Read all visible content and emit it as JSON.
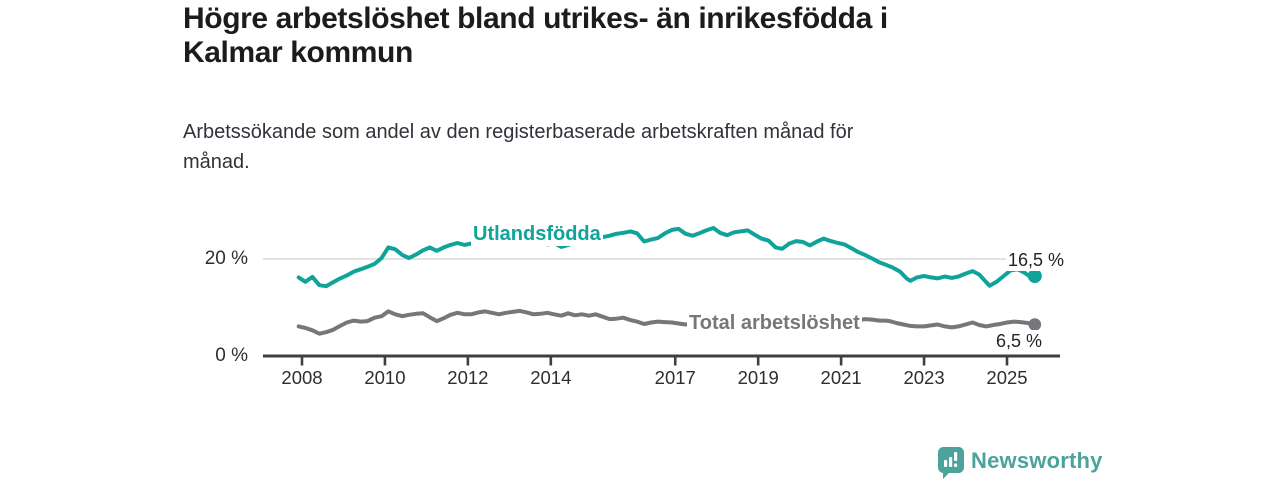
{
  "header": {
    "title": "Högre arbetslöshet bland utrikes- än inrikesfödda i Kalmar kommun",
    "title_lines": [
      "Högre arbetslöshet bland utrikes- än inrikesfödda i",
      "Kalmar kommun"
    ],
    "subtitle_lines": [
      "Arbetssökande som andel av den registerbaserade arbetskraften månad för",
      "månad."
    ]
  },
  "footer": {
    "brand": "Newsworthy",
    "logo_icon": "bar-chart-speech-bubble"
  },
  "colors": {
    "accent_teal": "#10a39a",
    "line_gray": "#77777b",
    "logo_teal": "#4ba39b",
    "grid": "#dadada",
    "axis": "#3f3f3f",
    "title_text": "#1c1c1e",
    "body_text": "#32323a"
  },
  "chart_data": {
    "type": "line",
    "title": "Högre arbetslöshet bland utrikes- än inrikesfödda i Kalmar kommun",
    "subtitle": "Arbetssökande som andel av den registerbaserade arbetskraften månad för månad.",
    "xlabel": "",
    "ylabel": "",
    "x_unit": "year (monthly observations)",
    "y_unit": "%",
    "xlim": [
      2007.9,
      2026.2
    ],
    "ylim": [
      0,
      27
    ],
    "grid": "single horizontal gridline at 20 %",
    "legend_position": "labels inline on lines",
    "xticks": [
      {
        "year": 2008,
        "label": "2008"
      },
      {
        "year": 2010,
        "label": "2010"
      },
      {
        "year": 2012,
        "label": "2012"
      },
      {
        "year": 2014,
        "label": "2014"
      },
      {
        "year": 2017,
        "label": "2017"
      },
      {
        "year": 2019,
        "label": "2019"
      },
      {
        "year": 2021,
        "label": "2021"
      },
      {
        "year": 2023,
        "label": "2023"
      },
      {
        "year": 2025,
        "label": "2025"
      }
    ],
    "yticks": [
      {
        "value": 0,
        "label": "0 %"
      },
      {
        "value": 20,
        "label": "20 %"
      }
    ],
    "series": [
      {
        "name": "Utlandsfödda",
        "color": "#10a39a",
        "end_value": 16.5,
        "end_label": "16,5 %",
        "points": [
          [
            2007.92,
            16.2
          ],
          [
            2008.08,
            15.3
          ],
          [
            2008.25,
            16.3
          ],
          [
            2008.42,
            14.6
          ],
          [
            2008.58,
            14.4
          ],
          [
            2008.75,
            15.2
          ],
          [
            2008.92,
            16.0
          ],
          [
            2009.08,
            16.6
          ],
          [
            2009.25,
            17.4
          ],
          [
            2009.42,
            17.9
          ],
          [
            2009.58,
            18.4
          ],
          [
            2009.75,
            19.0
          ],
          [
            2009.92,
            20.2
          ],
          [
            2010.08,
            22.4
          ],
          [
            2010.25,
            22.0
          ],
          [
            2010.42,
            20.8
          ],
          [
            2010.58,
            20.2
          ],
          [
            2010.75,
            20.9
          ],
          [
            2010.92,
            21.8
          ],
          [
            2011.08,
            22.4
          ],
          [
            2011.25,
            21.7
          ],
          [
            2011.42,
            22.4
          ],
          [
            2011.58,
            22.9
          ],
          [
            2011.75,
            23.3
          ],
          [
            2011.92,
            22.9
          ],
          [
            2012.08,
            23.2
          ],
          [
            2012.25,
            23.6
          ],
          [
            2012.42,
            23.1
          ],
          [
            2012.58,
            23.4
          ],
          [
            2012.75,
            23.7
          ],
          [
            2012.92,
            23.3
          ],
          [
            2013.08,
            23.6
          ],
          [
            2013.25,
            23.9
          ],
          [
            2013.42,
            23.4
          ],
          [
            2013.58,
            23.1
          ],
          [
            2013.75,
            23.4
          ],
          [
            2013.92,
            23.0
          ],
          [
            2014.08,
            23.3
          ],
          [
            2014.25,
            22.5
          ],
          [
            2014.42,
            22.9
          ],
          [
            2014.58,
            23.3
          ],
          [
            2014.75,
            23.6
          ],
          [
            2014.92,
            23.9
          ],
          [
            2015.08,
            24.2
          ],
          [
            2015.25,
            24.5
          ],
          [
            2015.42,
            24.8
          ],
          [
            2015.58,
            25.2
          ],
          [
            2015.75,
            25.4
          ],
          [
            2015.92,
            25.7
          ],
          [
            2016.08,
            25.3
          ],
          [
            2016.25,
            23.6
          ],
          [
            2016.42,
            24.0
          ],
          [
            2016.58,
            24.3
          ],
          [
            2016.75,
            25.3
          ],
          [
            2016.92,
            26.0
          ],
          [
            2017.08,
            26.2
          ],
          [
            2017.25,
            25.2
          ],
          [
            2017.42,
            24.8
          ],
          [
            2017.58,
            25.3
          ],
          [
            2017.75,
            25.9
          ],
          [
            2017.92,
            26.4
          ],
          [
            2018.08,
            25.4
          ],
          [
            2018.25,
            24.9
          ],
          [
            2018.42,
            25.5
          ],
          [
            2018.58,
            25.7
          ],
          [
            2018.75,
            25.9
          ],
          [
            2018.92,
            25.0
          ],
          [
            2019.08,
            24.2
          ],
          [
            2019.25,
            23.8
          ],
          [
            2019.42,
            22.4
          ],
          [
            2019.58,
            22.1
          ],
          [
            2019.75,
            23.2
          ],
          [
            2019.92,
            23.7
          ],
          [
            2020.08,
            23.5
          ],
          [
            2020.25,
            22.8
          ],
          [
            2020.42,
            23.6
          ],
          [
            2020.58,
            24.2
          ],
          [
            2020.75,
            23.7
          ],
          [
            2020.92,
            23.3
          ],
          [
            2021.08,
            23.0
          ],
          [
            2021.25,
            22.2
          ],
          [
            2021.42,
            21.4
          ],
          [
            2021.58,
            20.8
          ],
          [
            2021.75,
            20.1
          ],
          [
            2021.92,
            19.3
          ],
          [
            2022.08,
            18.8
          ],
          [
            2022.25,
            18.2
          ],
          [
            2022.42,
            17.4
          ],
          [
            2022.58,
            16.0
          ],
          [
            2022.67,
            15.5
          ],
          [
            2022.83,
            16.2
          ],
          [
            2023.0,
            16.5
          ],
          [
            2023.17,
            16.2
          ],
          [
            2023.33,
            16.0
          ],
          [
            2023.5,
            16.4
          ],
          [
            2023.67,
            16.1
          ],
          [
            2023.83,
            16.4
          ],
          [
            2024.0,
            17.0
          ],
          [
            2024.17,
            17.5
          ],
          [
            2024.33,
            16.8
          ],
          [
            2024.5,
            15.2
          ],
          [
            2024.58,
            14.5
          ],
          [
            2024.75,
            15.3
          ],
          [
            2024.92,
            16.5
          ],
          [
            2025.08,
            17.6
          ],
          [
            2025.25,
            17.9
          ],
          [
            2025.42,
            17.2
          ],
          [
            2025.58,
            16.2
          ],
          [
            2025.67,
            16.5
          ]
        ]
      },
      {
        "name": "Total arbetslöshet",
        "color": "#77777b",
        "end_value": 6.5,
        "end_label": "6,5 %",
        "points": [
          [
            2007.92,
            6.1
          ],
          [
            2008.08,
            5.8
          ],
          [
            2008.25,
            5.3
          ],
          [
            2008.42,
            4.6
          ],
          [
            2008.58,
            4.9
          ],
          [
            2008.75,
            5.4
          ],
          [
            2008.92,
            6.2
          ],
          [
            2009.08,
            6.9
          ],
          [
            2009.25,
            7.3
          ],
          [
            2009.42,
            7.1
          ],
          [
            2009.58,
            7.2
          ],
          [
            2009.75,
            7.9
          ],
          [
            2009.92,
            8.2
          ],
          [
            2010.08,
            9.2
          ],
          [
            2010.25,
            8.6
          ],
          [
            2010.42,
            8.2
          ],
          [
            2010.58,
            8.5
          ],
          [
            2010.75,
            8.7
          ],
          [
            2010.92,
            8.8
          ],
          [
            2011.08,
            8.0
          ],
          [
            2011.25,
            7.2
          ],
          [
            2011.42,
            7.8
          ],
          [
            2011.58,
            8.5
          ],
          [
            2011.75,
            8.9
          ],
          [
            2011.92,
            8.6
          ],
          [
            2012.08,
            8.6
          ],
          [
            2012.25,
            9.0
          ],
          [
            2012.42,
            9.2
          ],
          [
            2012.58,
            8.9
          ],
          [
            2012.75,
            8.6
          ],
          [
            2012.92,
            8.9
          ],
          [
            2013.08,
            9.1
          ],
          [
            2013.25,
            9.3
          ],
          [
            2013.42,
            9.0
          ],
          [
            2013.58,
            8.6
          ],
          [
            2013.75,
            8.7
          ],
          [
            2013.92,
            8.9
          ],
          [
            2014.08,
            8.6
          ],
          [
            2014.25,
            8.3
          ],
          [
            2014.42,
            8.8
          ],
          [
            2014.58,
            8.4
          ],
          [
            2014.75,
            8.6
          ],
          [
            2014.92,
            8.3
          ],
          [
            2015.08,
            8.6
          ],
          [
            2015.25,
            8.1
          ],
          [
            2015.42,
            7.6
          ],
          [
            2015.58,
            7.7
          ],
          [
            2015.75,
            7.9
          ],
          [
            2015.92,
            7.4
          ],
          [
            2016.08,
            7.1
          ],
          [
            2016.25,
            6.6
          ],
          [
            2016.42,
            6.9
          ],
          [
            2016.58,
            7.1
          ],
          [
            2016.75,
            7.0
          ],
          [
            2016.92,
            6.9
          ],
          [
            2017.08,
            6.7
          ],
          [
            2017.25,
            6.5
          ],
          [
            2017.42,
            6.6
          ],
          [
            2017.58,
            6.6
          ],
          [
            2017.75,
            6.5
          ],
          [
            2017.92,
            6.4
          ],
          [
            2018.08,
            6.3
          ],
          [
            2018.25,
            6.2
          ],
          [
            2018.42,
            6.3
          ],
          [
            2018.58,
            6.2
          ],
          [
            2018.75,
            6.1
          ],
          [
            2018.92,
            6.1
          ],
          [
            2019.08,
            6.1
          ],
          [
            2019.25,
            6.2
          ],
          [
            2019.42,
            6.1
          ],
          [
            2019.58,
            6.2
          ],
          [
            2019.75,
            6.3
          ],
          [
            2019.92,
            6.5
          ],
          [
            2020.08,
            6.7
          ],
          [
            2020.25,
            7.4
          ],
          [
            2020.42,
            8.2
          ],
          [
            2020.58,
            8.3
          ],
          [
            2020.75,
            8.1
          ],
          [
            2020.92,
            7.9
          ],
          [
            2021.08,
            7.8
          ],
          [
            2021.25,
            7.6
          ],
          [
            2021.42,
            7.4
          ],
          [
            2021.58,
            7.6
          ],
          [
            2021.75,
            7.5
          ],
          [
            2021.92,
            7.3
          ],
          [
            2022.08,
            7.3
          ],
          [
            2022.17,
            7.2
          ],
          [
            2022.33,
            6.8
          ],
          [
            2022.5,
            6.5
          ],
          [
            2022.67,
            6.2
          ],
          [
            2022.83,
            6.1
          ],
          [
            2023.0,
            6.1
          ],
          [
            2023.17,
            6.3
          ],
          [
            2023.33,
            6.5
          ],
          [
            2023.5,
            6.1
          ],
          [
            2023.67,
            5.9
          ],
          [
            2023.83,
            6.1
          ],
          [
            2024.0,
            6.5
          ],
          [
            2024.17,
            6.9
          ],
          [
            2024.33,
            6.4
          ],
          [
            2024.5,
            6.1
          ],
          [
            2024.67,
            6.4
          ],
          [
            2024.83,
            6.6
          ],
          [
            2025.0,
            6.9
          ],
          [
            2025.17,
            7.1
          ],
          [
            2025.33,
            7.0
          ],
          [
            2025.5,
            6.8
          ],
          [
            2025.58,
            6.6
          ],
          [
            2025.67,
            6.5
          ]
        ]
      }
    ]
  }
}
